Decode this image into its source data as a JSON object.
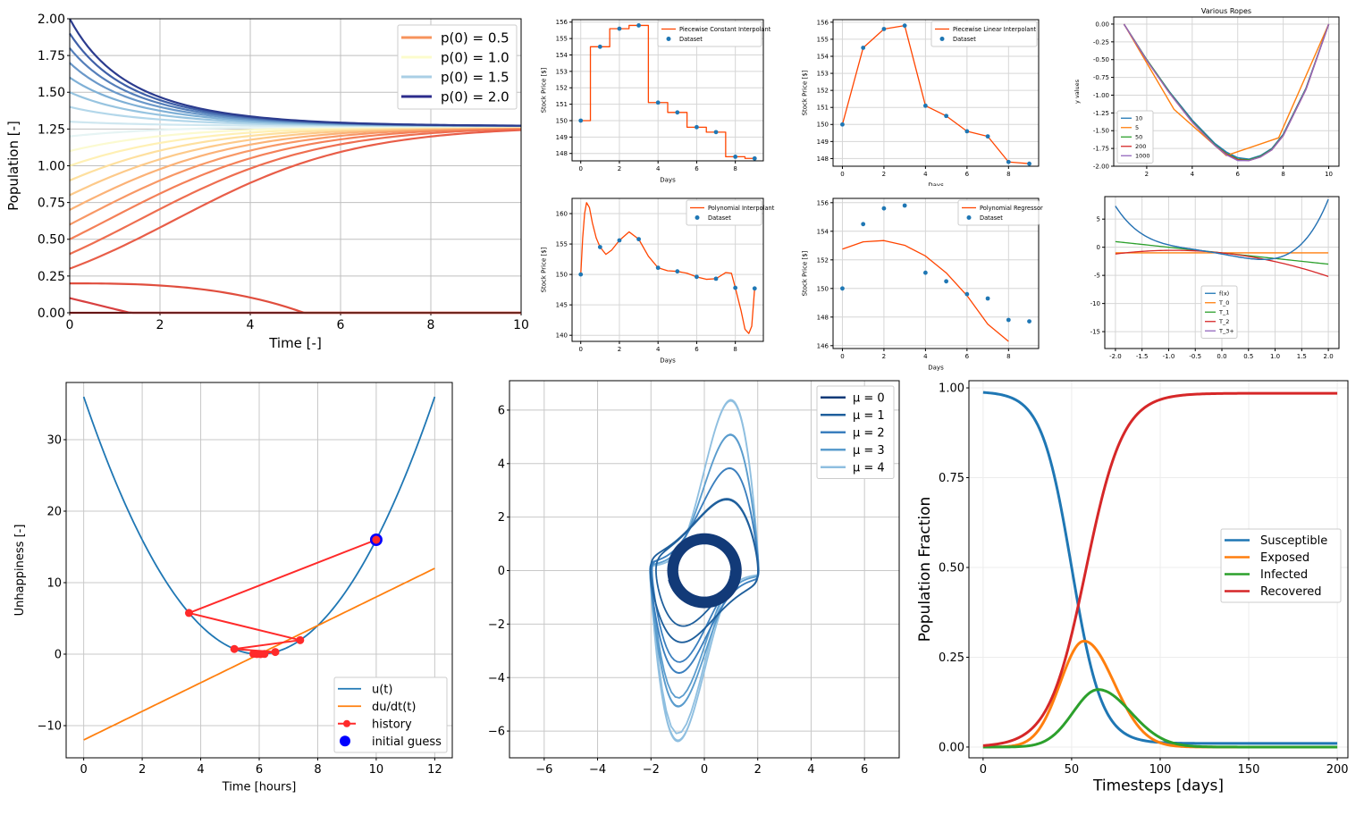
{
  "chart_data": [
    {
      "id": "logistic",
      "type": "line",
      "xlabel": "Time [-]",
      "ylabel": "Population [-]",
      "xlim": [
        0,
        10
      ],
      "ylim": [
        0,
        2
      ],
      "xticks": [
        "0",
        "2",
        "4",
        "6",
        "8",
        "10"
      ],
      "yticks": [
        "0.00",
        "0.25",
        "0.50",
        "0.75",
        "1.00",
        "1.25",
        "1.50",
        "1.75",
        "2.00"
      ],
      "grid": true,
      "legend_position": "top-right",
      "legend": [
        "p(0) = 0.5",
        "p(0) = 1.0",
        "p(0) = 1.5",
        "p(0) = 2.0"
      ],
      "legend_colors": [
        "#f7935c",
        "#fcfccc",
        "#a9cfe5",
        "#2c2c8c"
      ],
      "series": [
        {
          "p0": 0.0,
          "color": "#c82a2a"
        },
        {
          "p0": 0.1,
          "color": "#d84040"
        },
        {
          "p0": 0.2,
          "color": "#e04e3e"
        },
        {
          "p0": 0.3,
          "color": "#e85d48"
        },
        {
          "p0": 0.4,
          "color": "#ee6e50"
        },
        {
          "p0": 0.5,
          "color": "#f48058"
        },
        {
          "p0": 0.6,
          "color": "#f89866"
        },
        {
          "p0": 0.7,
          "color": "#fbb277"
        },
        {
          "p0": 0.8,
          "color": "#fdca8a"
        },
        {
          "p0": 0.9,
          "color": "#fee09f"
        },
        {
          "p0": 1.0,
          "color": "#fff0b4"
        },
        {
          "p0": 1.1,
          "color": "#fbfad0"
        },
        {
          "p0": 1.2,
          "color": "#e6f4f4"
        },
        {
          "p0": 1.3,
          "color": "#cfe7f0"
        },
        {
          "p0": 1.4,
          "color": "#b3d7ea"
        },
        {
          "p0": 1.5,
          "color": "#97c4e0"
        },
        {
          "p0": 1.6,
          "color": "#7fb0d6"
        },
        {
          "p0": 1.7,
          "color": "#6a98c9"
        },
        {
          "p0": 1.8,
          "color": "#557fba"
        },
        {
          "p0": 1.9,
          "color": "#3f60a8"
        },
        {
          "p0": 2.0,
          "color": "#2b3b8e"
        }
      ]
    },
    {
      "id": "pw-const",
      "type": "line",
      "xlabel": "Days",
      "ylabel": "Stock Price [$]",
      "xlim": [
        -0.45,
        9.45
      ],
      "ylim": [
        147.55,
        156.15
      ],
      "xticks": [
        "0",
        "2",
        "4",
        "6",
        "8"
      ],
      "yticks": [
        "148",
        "149",
        "150",
        "151",
        "152",
        "153",
        "154",
        "155",
        "156"
      ],
      "legend": [
        "Piecewise Constant Interpolant",
        "Dataset"
      ],
      "x": [
        0,
        1,
        2,
        3,
        4,
        5,
        6,
        7,
        8,
        9
      ],
      "y": [
        150.0,
        154.5,
        155.6,
        155.8,
        151.1,
        150.5,
        149.6,
        149.3,
        147.8,
        147.7
      ]
    },
    {
      "id": "pw-linear",
      "type": "line",
      "xlabel": "Days",
      "ylabel": "Stock Price [$]",
      "xlim": [
        -0.45,
        9.45
      ],
      "ylim": [
        147.55,
        156.15
      ],
      "xticks": [
        "0",
        "2",
        "4",
        "6",
        "8"
      ],
      "yticks": [
        "148",
        "149",
        "150",
        "151",
        "152",
        "153",
        "154",
        "155",
        "156"
      ],
      "legend": [
        "Piecewise Linear Interpolant",
        "Dataset"
      ],
      "x": [
        0,
        1,
        2,
        3,
        4,
        5,
        6,
        7,
        8,
        9
      ],
      "y": [
        150.0,
        154.5,
        155.6,
        155.8,
        151.1,
        150.5,
        149.6,
        149.3,
        147.8,
        147.7
      ]
    },
    {
      "id": "ropes",
      "type": "line",
      "title": "Various Ropes",
      "ylabel": "y values",
      "xlim": [
        0.55,
        10.45
      ],
      "ylim": [
        -2.0,
        0.1
      ],
      "xticks": [
        "2",
        "4",
        "6",
        "8",
        "10"
      ],
      "yticks": [
        "0.00",
        "-0.25",
        "-0.50",
        "-0.75",
        "-1.00",
        "-1.25",
        "-1.50",
        "-1.75",
        "-2.00"
      ],
      "legend": [
        "10",
        "5",
        "50",
        "200",
        "1000"
      ],
      "series": [
        {
          "name": "10",
          "color": "#1f77b4",
          "x": [
            1,
            2,
            3,
            4,
            5,
            5.5,
            6,
            6.5,
            7,
            7.5,
            8,
            9,
            10
          ],
          "y": [
            0,
            -0.5,
            -0.95,
            -1.35,
            -1.68,
            -1.8,
            -1.88,
            -1.9,
            -1.85,
            -1.75,
            -1.55,
            -0.9,
            0
          ]
        },
        {
          "name": "5",
          "color": "#ff7f0e",
          "x": [
            1,
            3.2,
            5.5,
            7.8,
            10
          ],
          "y": [
            0,
            -1.2,
            -1.85,
            -1.6,
            0
          ]
        },
        {
          "name": "50",
          "color": "#2ca02c",
          "x": [
            1,
            2,
            3,
            4,
            5,
            5.5,
            6,
            6.5,
            7,
            7.5,
            8,
            9,
            10
          ],
          "y": [
            0,
            -0.5,
            -0.96,
            -1.37,
            -1.7,
            -1.82,
            -1.9,
            -1.91,
            -1.86,
            -1.76,
            -1.56,
            -0.91,
            0
          ]
        },
        {
          "name": "200",
          "color": "#d62728",
          "x": [
            1,
            2,
            3,
            4,
            5,
            5.5,
            6,
            6.5,
            7,
            7.5,
            8,
            9,
            10
          ],
          "y": [
            0,
            -0.51,
            -0.97,
            -1.38,
            -1.71,
            -1.83,
            -1.91,
            -1.92,
            -1.87,
            -1.77,
            -1.57,
            -0.92,
            0
          ]
        },
        {
          "name": "1000",
          "color": "#9467bd",
          "x": [
            1,
            2,
            3,
            4,
            5,
            5.5,
            6,
            6.5,
            7,
            7.5,
            8,
            9,
            10
          ],
          "y": [
            0,
            -0.51,
            -0.97,
            -1.38,
            -1.71,
            -1.84,
            -1.92,
            -1.92,
            -1.87,
            -1.77,
            -1.57,
            -0.92,
            0
          ]
        }
      ]
    },
    {
      "id": "poly-interp",
      "type": "line",
      "xlabel": "Days",
      "ylabel": "Stock Price [$]",
      "xlim": [
        -0.45,
        9.45
      ],
      "ylim": [
        139.0,
        162.5
      ],
      "xticks": [
        "0",
        "2",
        "4",
        "6",
        "8"
      ],
      "yticks": [
        "140",
        "145",
        "150",
        "155",
        "160"
      ],
      "legend": [
        "Polynomial Interpolant",
        "Dataset"
      ],
      "x": [
        0,
        1,
        2,
        3,
        4,
        5,
        6,
        7,
        8,
        9
      ],
      "y": [
        150.0,
        154.5,
        155.6,
        155.8,
        151.1,
        150.5,
        149.6,
        149.3,
        147.8,
        147.7
      ],
      "curve_x": [
        0,
        0.1,
        0.2,
        0.3,
        0.45,
        0.6,
        0.8,
        1.0,
        1.3,
        1.6,
        2.0,
        2.5,
        3.0,
        3.5,
        4.0,
        4.5,
        5.0,
        5.5,
        6.0,
        6.5,
        7.0,
        7.5,
        7.8,
        8.0,
        8.3,
        8.5,
        8.7,
        8.85,
        9.0
      ],
      "curve_y": [
        150,
        156,
        160,
        161.8,
        161,
        158.5,
        156,
        154.5,
        153.3,
        154,
        155.6,
        157,
        155.8,
        153,
        151.1,
        150.6,
        150.5,
        150.2,
        149.6,
        149.2,
        149.3,
        150.3,
        150.2,
        147.8,
        144,
        141,
        140.3,
        141.5,
        147.7
      ]
    },
    {
      "id": "poly-reg",
      "type": "line",
      "xlabel": "Days",
      "ylabel": "Stock Price [$]",
      "xlim": [
        -0.45,
        9.45
      ],
      "ylim": [
        145.8,
        156.3
      ],
      "xticks": [
        "0",
        "2",
        "4",
        "6",
        "8"
      ],
      "yticks": [
        "146",
        "148",
        "150",
        "152",
        "154",
        "156"
      ],
      "legend": [
        "Polynomial Regressor",
        "Dataset"
      ],
      "x": [
        0,
        1,
        2,
        3,
        4,
        5,
        6,
        7,
        8,
        9
      ],
      "y": [
        150.0,
        154.5,
        155.6,
        155.8,
        151.1,
        150.5,
        149.6,
        149.3,
        147.8,
        147.7
      ],
      "fit": [
        152.75,
        153.26,
        153.35,
        153.02,
        152.27,
        151.09,
        149.5,
        147.5,
        146.3
      ]
    },
    {
      "id": "taylor",
      "type": "line",
      "xlim": [
        -2.2,
        2.2
      ],
      "ylim": [
        -18,
        9
      ],
      "xticks": [
        "-2.0",
        "-1.5",
        "-1.0",
        "-0.5",
        "0.0",
        "0.5",
        "1.0",
        "1.5",
        "2.0"
      ],
      "yticks": [
        "5",
        "0",
        "-5",
        "-10",
        "-15"
      ],
      "legend": [
        "f(x)",
        "T_0",
        "T_1",
        "T_2",
        "T_3+"
      ],
      "legend_colors": [
        "#1f77b4",
        "#ff7f0e",
        "#2ca02c",
        "#d62728",
        "#9467bd"
      ]
    },
    {
      "id": "unhappiness",
      "type": "line",
      "xlabel": "Time [hours]",
      "ylabel": "Unhappiness [-]",
      "xlim": [
        -0.6,
        12.6
      ],
      "ylim": [
        -14.5,
        38
      ],
      "xticks": [
        "0",
        "2",
        "4",
        "6",
        "8",
        "10",
        "12"
      ],
      "yticks": [
        "30",
        "20",
        "10",
        "0",
        "−10"
      ],
      "legend": [
        "u(t)",
        "du/dt(t)",
        "history",
        "initial guess"
      ],
      "history_x": [
        10,
        3.6,
        7.4,
        5.15,
        6.55,
        5.8,
        6.18,
        5.92,
        6.05
      ],
      "history_y": [
        16.0,
        5.76,
        1.96,
        0.72,
        0.3,
        0.04,
        0.03,
        0.01,
        0.0
      ],
      "initial_guess": [
        10,
        16
      ]
    },
    {
      "id": "vanderpol",
      "type": "line",
      "xlim": [
        -7.3,
        7.3
      ],
      "ylim": [
        -7.0,
        7.1
      ],
      "xticks": [
        "−6",
        "−4",
        "−2",
        "0",
        "2",
        "4",
        "6"
      ],
      "yticks": [
        "6",
        "4",
        "2",
        "0",
        "−2",
        "−4",
        "−6"
      ],
      "legend": [
        "μ = 0",
        "μ = 1",
        "μ = 2",
        "μ = 3",
        "μ = 4"
      ],
      "legend_colors": [
        "#123a78",
        "#1f5f9c",
        "#3b7fbe",
        "#5a9ccd",
        "#8fbfe0"
      ]
    },
    {
      "id": "seir",
      "type": "line",
      "xlabel": "Timesteps [days]",
      "ylabel": "Population Fraction",
      "xlim": [
        -8,
        206
      ],
      "ylim": [
        -0.03,
        1.02
      ],
      "xticks": [
        "0",
        "50",
        "100",
        "150",
        "200"
      ],
      "yticks": [
        "1.00",
        "0.75",
        "0.50",
        "0.25",
        "0.00"
      ],
      "legend": [
        "Susceptible",
        "Exposed",
        "Infected",
        "Recovered"
      ],
      "legend_colors": [
        "#1f77b4",
        "#ff7f0e",
        "#2ca02c",
        "#d62728"
      ]
    }
  ]
}
